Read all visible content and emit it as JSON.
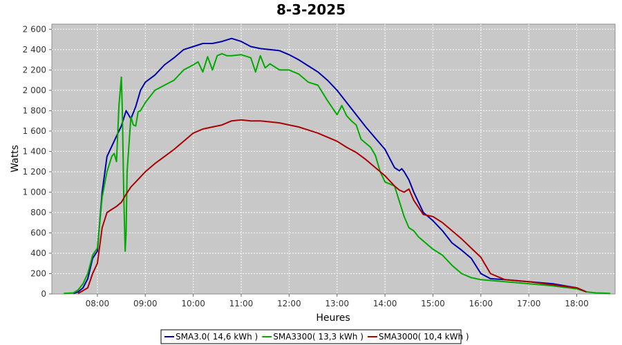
{
  "chart_data": {
    "type": "line",
    "title": "8-3-2025",
    "xlabel": "Heures",
    "ylabel": "Watts",
    "x_ticks": [
      "08:00",
      "09:00",
      "10:00",
      "11:00",
      "12:00",
      "13:00",
      "14:00",
      "15:00",
      "16:00",
      "17:00",
      "18:00"
    ],
    "y_ticks": [
      "0",
      "200",
      "400",
      "600",
      "800",
      "1 000",
      "1 200",
      "1 400",
      "1 600",
      "1 800",
      "2 000",
      "2 200",
      "2 400",
      "2 600"
    ],
    "xlim": [
      7.05,
      18.8
    ],
    "ylim": [
      0,
      2650
    ],
    "grid": true,
    "legend_position": "bottom",
    "series": [
      {
        "name": "SMA3.0( 14,6 kWh )",
        "color": "#0000aa",
        "x": [
          7.5,
          7.6,
          7.7,
          7.8,
          7.9,
          8.0,
          8.1,
          8.2,
          8.3,
          8.4,
          8.5,
          8.6,
          8.7,
          8.8,
          8.9,
          9.0,
          9.2,
          9.4,
          9.6,
          9.8,
          10.0,
          10.2,
          10.4,
          10.6,
          10.8,
          11.0,
          11.2,
          11.4,
          11.6,
          11.8,
          12.0,
          12.2,
          12.4,
          12.6,
          12.8,
          13.0,
          13.2,
          13.4,
          13.6,
          13.8,
          14.0,
          14.1,
          14.2,
          14.3,
          14.35,
          14.4,
          14.5,
          14.6,
          14.7,
          14.8,
          15.0,
          15.2,
          15.4,
          15.6,
          15.8,
          16.0,
          16.2,
          16.5,
          17.0,
          17.5,
          18.0,
          18.2
        ],
        "y": [
          5,
          20,
          60,
          150,
          350,
          420,
          1000,
          1350,
          1450,
          1550,
          1650,
          1800,
          1720,
          1840,
          2000,
          2080,
          2150,
          2250,
          2320,
          2400,
          2430,
          2460,
          2460,
          2480,
          2510,
          2480,
          2430,
          2410,
          2400,
          2390,
          2350,
          2300,
          2240,
          2180,
          2100,
          2000,
          1880,
          1760,
          1640,
          1530,
          1420,
          1330,
          1240,
          1210,
          1230,
          1200,
          1120,
          1000,
          900,
          800,
          720,
          620,
          500,
          430,
          350,
          200,
          150,
          140,
          120,
          100,
          60,
          20
        ]
      },
      {
        "name": "SMA3300( 13,3 kWh )",
        "color": "#00aa00",
        "x": [
          7.3,
          7.5,
          7.6,
          7.7,
          7.8,
          7.9,
          8.0,
          8.1,
          8.2,
          8.3,
          8.35,
          8.4,
          8.45,
          8.5,
          8.52,
          8.55,
          8.58,
          8.6,
          8.62,
          8.7,
          8.75,
          8.8,
          8.85,
          8.9,
          9.0,
          9.2,
          9.4,
          9.6,
          9.8,
          10.0,
          10.1,
          10.2,
          10.3,
          10.4,
          10.5,
          10.6,
          10.7,
          10.8,
          11.0,
          11.2,
          11.3,
          11.4,
          11.5,
          11.6,
          11.8,
          12.0,
          12.2,
          12.4,
          12.6,
          12.8,
          13.0,
          13.1,
          13.2,
          13.3,
          13.4,
          13.5,
          13.6,
          13.7,
          13.8,
          13.9,
          14.0,
          14.2,
          14.4,
          14.5,
          14.6,
          14.7,
          14.8,
          15.0,
          15.2,
          15.4,
          15.6,
          15.8,
          16.0,
          16.5,
          17.0,
          17.5,
          18.0,
          18.2,
          18.4,
          18.7
        ],
        "y": [
          5,
          10,
          40,
          100,
          200,
          380,
          450,
          950,
          1200,
          1350,
          1380,
          1300,
          1850,
          2130,
          1800,
          1000,
          420,
          600,
          1200,
          1740,
          1660,
          1650,
          1790,
          1800,
          1880,
          2000,
          2050,
          2100,
          2200,
          2250,
          2280,
          2180,
          2330,
          2200,
          2340,
          2360,
          2340,
          2340,
          2350,
          2320,
          2180,
          2340,
          2220,
          2260,
          2200,
          2200,
          2160,
          2080,
          2050,
          1900,
          1760,
          1850,
          1750,
          1700,
          1660,
          1520,
          1480,
          1440,
          1360,
          1200,
          1100,
          1060,
          760,
          650,
          620,
          560,
          520,
          440,
          380,
          280,
          200,
          160,
          140,
          120,
          100,
          80,
          50,
          20,
          10,
          5
        ]
      },
      {
        "name": "SMA3000( 10,4 kWh )",
        "color": "#aa0000",
        "x": [
          7.6,
          7.8,
          7.9,
          8.0,
          8.1,
          8.2,
          8.3,
          8.4,
          8.5,
          8.6,
          8.7,
          8.8,
          9.0,
          9.2,
          9.4,
          9.6,
          9.8,
          10.0,
          10.2,
          10.4,
          10.6,
          10.8,
          11.0,
          11.2,
          11.4,
          11.6,
          11.8,
          12.0,
          12.2,
          12.4,
          12.6,
          12.8,
          13.0,
          13.2,
          13.4,
          13.6,
          13.8,
          14.0,
          14.2,
          14.3,
          14.4,
          14.5,
          14.6,
          14.8,
          15.0,
          15.2,
          15.4,
          15.6,
          15.8,
          16.0,
          16.2,
          16.5,
          17.0,
          17.5,
          18.0,
          18.2
        ],
        "y": [
          5,
          60,
          200,
          300,
          650,
          800,
          830,
          860,
          900,
          980,
          1050,
          1100,
          1200,
          1280,
          1350,
          1420,
          1500,
          1580,
          1620,
          1640,
          1660,
          1700,
          1710,
          1700,
          1700,
          1690,
          1680,
          1660,
          1640,
          1610,
          1580,
          1540,
          1500,
          1440,
          1390,
          1320,
          1240,
          1160,
          1060,
          1020,
          1000,
          1030,
          920,
          780,
          760,
          700,
          620,
          540,
          450,
          360,
          200,
          140,
          120,
          90,
          60,
          20
        ]
      }
    ]
  }
}
